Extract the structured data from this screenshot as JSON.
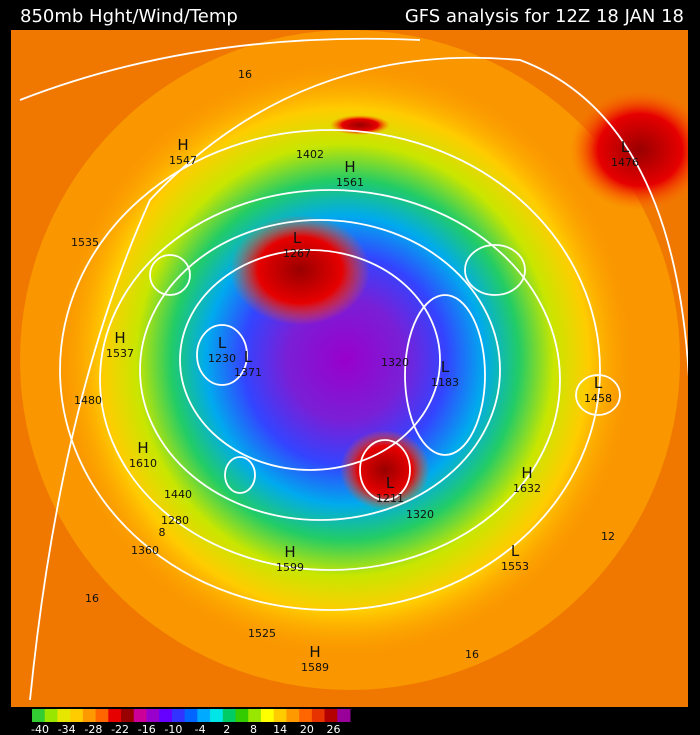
{
  "header": {
    "left_title": "850mb Hght/Wind/Temp",
    "right_title": "GFS analysis for 12Z 18 JAN 18"
  },
  "centers": [
    {
      "kind": "H",
      "value": 1547
    },
    {
      "kind": "H",
      "value": 1561
    },
    {
      "kind": "L",
      "value": 1476
    },
    {
      "kind": "L",
      "value": 1267
    },
    {
      "kind": "H",
      "value": 1537
    },
    {
      "kind": "H",
      "value": 1610
    },
    {
      "kind": "H",
      "value": 1632
    },
    {
      "kind": "L",
      "value": 1553
    },
    {
      "kind": "L",
      "value": 1458
    },
    {
      "kind": "L",
      "value": 1211
    },
    {
      "kind": "L",
      "value": 1183
    },
    {
      "kind": "L",
      "value": 1230
    },
    {
      "kind": "L",
      "value": 1371
    },
    {
      "kind": "H",
      "value": 1599
    },
    {
      "kind": "H",
      "value": 1589
    }
  ],
  "contour_labels": [
    1402,
    1320,
    1320,
    1440,
    1280,
    1360,
    1480,
    1535,
    1525,
    16,
    16,
    16,
    12,
    8
  ],
  "colorbar": {
    "ticks": [
      -40,
      -34,
      -28,
      -22,
      -16,
      -10,
      -4,
      2,
      8,
      14,
      20,
      26
    ],
    "colors": [
      "#33cc33",
      "#99e600",
      "#e6e600",
      "#ffcc00",
      "#ff9900",
      "#ff6600",
      "#e60000",
      "#990000",
      "#cc0099",
      "#9900cc",
      "#6600ff",
      "#3333ff",
      "#0066ff",
      "#00aaff",
      "#00e6e6",
      "#00cc66",
      "#33cc00",
      "#99e600",
      "#ffff00",
      "#ffcc00",
      "#ff9900",
      "#ff6600",
      "#e63300",
      "#b30000",
      "#990099"
    ]
  }
}
